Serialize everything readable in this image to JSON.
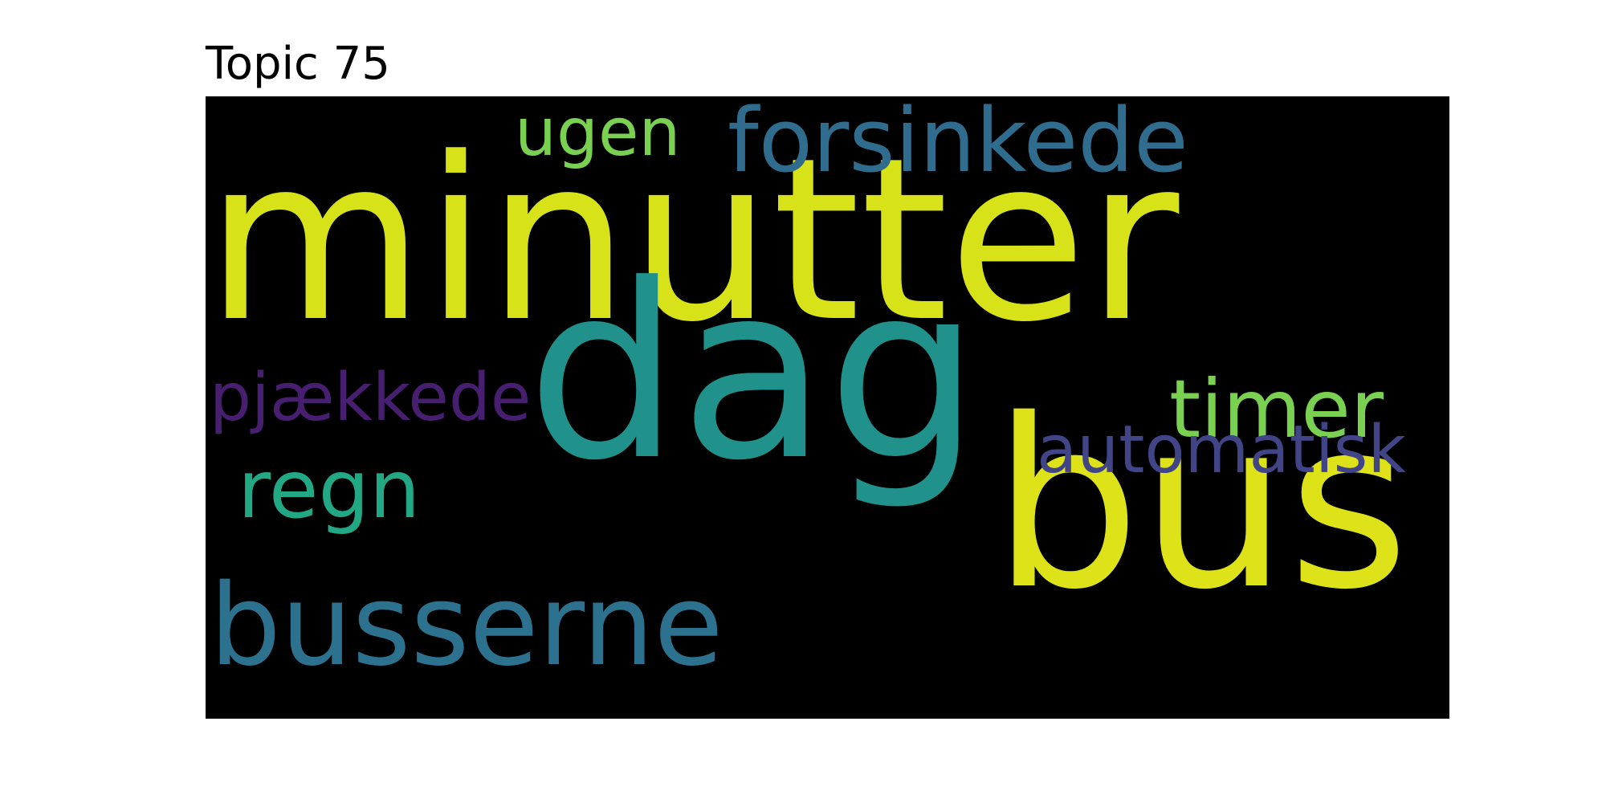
{
  "figure": {
    "title": "Topic 75"
  },
  "chart_data": {
    "type": "wordcloud",
    "title": "Topic 75",
    "background": "#000000",
    "colormap": "viridis",
    "words": [
      {
        "text": "minutter",
        "weight": 1.0,
        "color": "#d8e219"
      },
      {
        "text": "dag",
        "weight": 0.92,
        "color": "#21918c"
      },
      {
        "text": "bus",
        "weight": 0.88,
        "color": "#dde318"
      },
      {
        "text": "busserne",
        "weight": 0.55,
        "color": "#2c728e"
      },
      {
        "text": "forsinkede",
        "weight": 0.38,
        "color": "#2f6c8e"
      },
      {
        "text": "timer",
        "weight": 0.36,
        "color": "#7ad151"
      },
      {
        "text": "regn",
        "weight": 0.36,
        "color": "#22a884"
      },
      {
        "text": "automatisk",
        "weight": 0.3,
        "color": "#414487"
      },
      {
        "text": "pjækkede",
        "weight": 0.3,
        "color": "#481f70"
      },
      {
        "text": "ugen",
        "weight": 0.3,
        "color": "#7ad151"
      }
    ]
  }
}
